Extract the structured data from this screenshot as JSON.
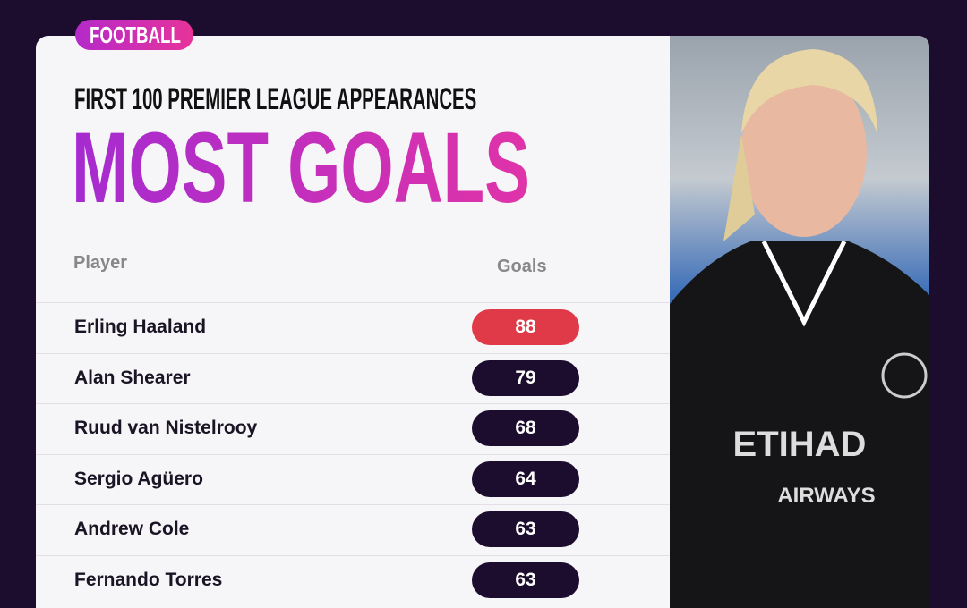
{
  "tag": "FOOTBALL",
  "subtitle": "FIRST 100 PREMIER LEAGUE APPEARANCES",
  "title": "MOST GOALS",
  "headers": {
    "player": "Player",
    "goals": "Goals"
  },
  "colors": {
    "background": "#1c0c2e",
    "highlight": "#e03a48",
    "pill": "#1c0c2e",
    "title_gradient": [
      "#a52bd0",
      "#e033a8"
    ]
  },
  "rows": [
    {
      "player": "Erling Haaland",
      "goals": "88"
    },
    {
      "player": "Alan Shearer",
      "goals": "79"
    },
    {
      "player": "Ruud van Nistelrooy",
      "goals": "68"
    },
    {
      "player": "Sergio Agüero",
      "goals": "64"
    },
    {
      "player": "Andrew Cole",
      "goals": "63"
    },
    {
      "player": "Fernando Torres",
      "goals": "63"
    }
  ],
  "photo": {
    "shirt_text": "ETIHAD",
    "shirt_subtext": "AIRWAYS"
  }
}
